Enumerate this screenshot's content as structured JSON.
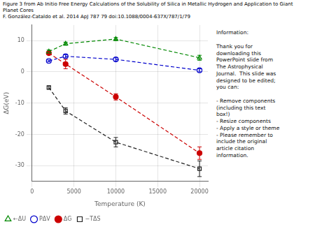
{
  "chart_data": {
    "type": "line",
    "title": "Figure 3 from Ab Initio Free Energy Calculations of the Solubility of Silica in Metallic Hydrogen and Application to Giant\nPlanet Cores\nF. González-Cataldo et al. 2014 ApJ 787 79 doi:10.1088/0004-637X/787/1/79",
    "xlabel": "Temperature (K)",
    "ylabel": "ΔG(eV)",
    "xlim": [
      0,
      21000
    ],
    "ylim": [
      -35,
      15
    ],
    "xticks": [
      0,
      5000,
      10000,
      15000,
      20000
    ],
    "yticks": [
      -30,
      -20,
      -10,
      0,
      10
    ],
    "grid": true,
    "legend": "lower left",
    "annotations": [
      "Information:\n\nThank you for\ndownloading this\nPowerPoint slide from\nThe Astrophysical\nJournal.  This slide was\ndesigned to be edited;\nyou can:\n\n- Remove components\n(including this text\nbox!)\n- Resize components\n- Apply a style or theme\n- Please remember to\ninclude the original\narticle citation\ninformation."
    ],
    "x": [
      2000,
      4000,
      10000,
      20000
    ],
    "series": [
      {
        "name": "←ΔU",
        "color": "#008800",
        "values": [
          6.5,
          9.0,
          10.5,
          4.5
        ],
        "yerr": [
          0.5,
          0.5,
          0.5,
          0.8
        ],
        "marker": "triangle-open",
        "line_style": "dashed"
      },
      {
        "name": "PΔV",
        "color": "#0000cc",
        "values": [
          3.5,
          5.0,
          4.0,
          0.5
        ],
        "yerr": [
          0.3,
          0.5,
          0.5,
          0.5
        ],
        "marker": "circle-open",
        "line_style": "dashed"
      },
      {
        "name": "ΔG",
        "color": "#cc0000",
        "values": [
          6.0,
          2.5,
          -8.0,
          -26.0
        ],
        "yerr": [
          0.5,
          1.5,
          1.0,
          2.0
        ],
        "marker": "circle",
        "line_style": "dashed"
      },
      {
        "name": "−TΔS",
        "color": "#222222",
        "values": [
          -5.0,
          -12.5,
          -22.5,
          -31.0
        ],
        "yerr": [
          0.5,
          1.0,
          1.5,
          2.5
        ],
        "marker": "square-open",
        "line_style": "dashed"
      }
    ]
  }
}
